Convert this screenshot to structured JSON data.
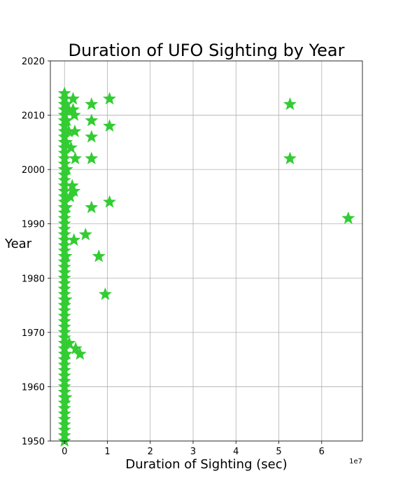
{
  "chart_data": {
    "type": "scatter",
    "title": "Duration of UFO Sighting by Year",
    "xlabel": "Duration of Sighting (sec)",
    "ylabel": "Year",
    "x_offset_label": "1e7",
    "x_scale_factor": 10000000,
    "xlim": [
      -3300000,
      69500000
    ],
    "ylim": [
      1950,
      2020
    ],
    "xticks": [
      0,
      10000000,
      20000000,
      30000000,
      40000000,
      50000000,
      60000000
    ],
    "xtick_labels": [
      "0",
      "1",
      "2",
      "3",
      "4",
      "5",
      "6"
    ],
    "yticks": [
      1950,
      1960,
      1970,
      1980,
      1990,
      2000,
      2010,
      2020
    ],
    "ytick_labels": [
      "1950",
      "1960",
      "1970",
      "1980",
      "1990",
      "2000",
      "2010",
      "2020"
    ],
    "grid": true,
    "marker": "star",
    "marker_color": "#33cc33",
    "points": [
      {
        "x": 0,
        "y": 1950
      },
      {
        "x": 0,
        "y": 1951
      },
      {
        "x": 0,
        "y": 1952
      },
      {
        "x": 0,
        "y": 1953
      },
      {
        "x": 0,
        "y": 1954
      },
      {
        "x": 0,
        "y": 1955
      },
      {
        "x": 0,
        "y": 1956
      },
      {
        "x": 0,
        "y": 1957
      },
      {
        "x": 0,
        "y": 1958
      },
      {
        "x": 0,
        "y": 1959
      },
      {
        "x": 0,
        "y": 1960
      },
      {
        "x": 0,
        "y": 1961
      },
      {
        "x": 0,
        "y": 1962
      },
      {
        "x": 0,
        "y": 1963
      },
      {
        "x": 0,
        "y": 1964
      },
      {
        "x": 0,
        "y": 1965
      },
      {
        "x": 0,
        "y": 1966
      },
      {
        "x": 0,
        "y": 1967
      },
      {
        "x": 0,
        "y": 1968
      },
      {
        "x": 0,
        "y": 1969
      },
      {
        "x": 0,
        "y": 1970
      },
      {
        "x": 0,
        "y": 1971
      },
      {
        "x": 0,
        "y": 1972
      },
      {
        "x": 0,
        "y": 1973
      },
      {
        "x": 0,
        "y": 1974
      },
      {
        "x": 0,
        "y": 1975
      },
      {
        "x": 0,
        "y": 1976
      },
      {
        "x": 0,
        "y": 1977
      },
      {
        "x": 0,
        "y": 1978
      },
      {
        "x": 0,
        "y": 1979
      },
      {
        "x": 0,
        "y": 1980
      },
      {
        "x": 0,
        "y": 1981
      },
      {
        "x": 0,
        "y": 1982
      },
      {
        "x": 0,
        "y": 1983
      },
      {
        "x": 0,
        "y": 1984
      },
      {
        "x": 0,
        "y": 1985
      },
      {
        "x": 0,
        "y": 1986
      },
      {
        "x": 0,
        "y": 1987
      },
      {
        "x": 0,
        "y": 1988
      },
      {
        "x": 0,
        "y": 1989
      },
      {
        "x": 0,
        "y": 1990
      },
      {
        "x": 0,
        "y": 1991
      },
      {
        "x": 0,
        "y": 1992
      },
      {
        "x": 0,
        "y": 1993
      },
      {
        "x": 0,
        "y": 1994
      },
      {
        "x": 0,
        "y": 1995
      },
      {
        "x": 0,
        "y": 1996
      },
      {
        "x": 0,
        "y": 1997
      },
      {
        "x": 0,
        "y": 1998
      },
      {
        "x": 0,
        "y": 1999
      },
      {
        "x": 0,
        "y": 2000
      },
      {
        "x": 0,
        "y": 2001
      },
      {
        "x": 0,
        "y": 2002
      },
      {
        "x": 0,
        "y": 2003
      },
      {
        "x": 0,
        "y": 2004
      },
      {
        "x": 0,
        "y": 2005
      },
      {
        "x": 0,
        "y": 2006
      },
      {
        "x": 0,
        "y": 2007
      },
      {
        "x": 0,
        "y": 2008
      },
      {
        "x": 0,
        "y": 2009
      },
      {
        "x": 0,
        "y": 2010
      },
      {
        "x": 0,
        "y": 2011
      },
      {
        "x": 0,
        "y": 2012
      },
      {
        "x": 0,
        "y": 2013
      },
      {
        "x": 0,
        "y": 2014
      },
      {
        "x": 300000,
        "y": 1958
      },
      {
        "x": 400000,
        "y": 1966
      },
      {
        "x": 300000,
        "y": 1976
      },
      {
        "x": 300000,
        "y": 1984
      },
      {
        "x": 400000,
        "y": 1993
      },
      {
        "x": 500000,
        "y": 2000
      },
      {
        "x": 400000,
        "y": 2005
      },
      {
        "x": 500000,
        "y": 2009
      },
      {
        "x": 400000,
        "y": 2012
      },
      {
        "x": 1000000,
        "y": 2007
      },
      {
        "x": 1000000,
        "y": 2011
      },
      {
        "x": 1100000,
        "y": 1968
      },
      {
        "x": 1300000,
        "y": 1995
      },
      {
        "x": 1500000,
        "y": 2004
      },
      {
        "x": 1800000,
        "y": 1997
      },
      {
        "x": 2000000,
        "y": 2013
      },
      {
        "x": 2000000,
        "y": 2011
      },
      {
        "x": 2200000,
        "y": 1996
      },
      {
        "x": 2200000,
        "y": 1987
      },
      {
        "x": 2300000,
        "y": 2010
      },
      {
        "x": 2400000,
        "y": 2007
      },
      {
        "x": 2500000,
        "y": 2002
      },
      {
        "x": 2600000,
        "y": 1967
      },
      {
        "x": 3600000,
        "y": 1966
      },
      {
        "x": 4900000,
        "y": 1988
      },
      {
        "x": 6300000,
        "y": 2012
      },
      {
        "x": 6300000,
        "y": 2009
      },
      {
        "x": 6300000,
        "y": 2006
      },
      {
        "x": 6300000,
        "y": 2002
      },
      {
        "x": 6300000,
        "y": 1993
      },
      {
        "x": 8000000,
        "y": 1984
      },
      {
        "x": 9500000,
        "y": 1977
      },
      {
        "x": 10500000,
        "y": 2013
      },
      {
        "x": 10500000,
        "y": 2008
      },
      {
        "x": 10500000,
        "y": 1994
      },
      {
        "x": 52600000,
        "y": 2012
      },
      {
        "x": 52600000,
        "y": 2002
      },
      {
        "x": 66200000,
        "y": 1991
      }
    ]
  }
}
